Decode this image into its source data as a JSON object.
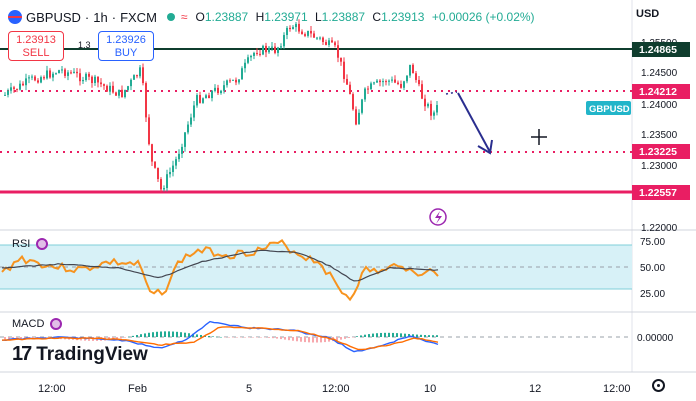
{
  "symbol": {
    "name": "GBPUSD",
    "interval": "1h",
    "exchange": "FXCM"
  },
  "ohlc": {
    "o_label": "O",
    "o": "1.23887",
    "h_label": "H",
    "h": "1.23971",
    "l_label": "L",
    "l": "1.23887",
    "c_label": "C",
    "c": "1.23913",
    "change": "+0.00026 (+0.02%)"
  },
  "currency_button": "USD",
  "sell": {
    "price": "1.23913",
    "label": "SELL"
  },
  "buy": {
    "price": "1.23926",
    "label": "BUY"
  },
  "spread": "1.3",
  "price_axis": {
    "ticks": [
      "1.25500",
      "1.24500",
      "1.24000",
      "1.23500",
      "1.23000",
      "1.22000"
    ],
    "tags": [
      {
        "value": "1.24865",
        "color": "#0f3d2e"
      },
      {
        "value": "1.24212",
        "color": "#e91e63"
      },
      {
        "value": "GBPUSD",
        "color": "#22b5c9"
      },
      {
        "value": "1.23225",
        "color": "#e91e63"
      },
      {
        "value": "1.22557",
        "color": "#e91e63"
      }
    ]
  },
  "rsi": {
    "title": "RSI",
    "levels": [
      "75.00",
      "50.00",
      "25.00"
    ]
  },
  "macd": {
    "title": "MACD",
    "levels": [
      "0.00000"
    ]
  },
  "time_axis": [
    "12:00",
    "Feb",
    "5",
    "12:00",
    "10",
    "12",
    "12:00"
  ],
  "brand": "TradingView",
  "colors": {
    "up": "#22ab94",
    "down": "#f23645",
    "support": "#e91e63",
    "resistance": "#0f3d2e",
    "arrow": "#2a2e8f",
    "rsi_band": "#d7f1f7"
  }
}
